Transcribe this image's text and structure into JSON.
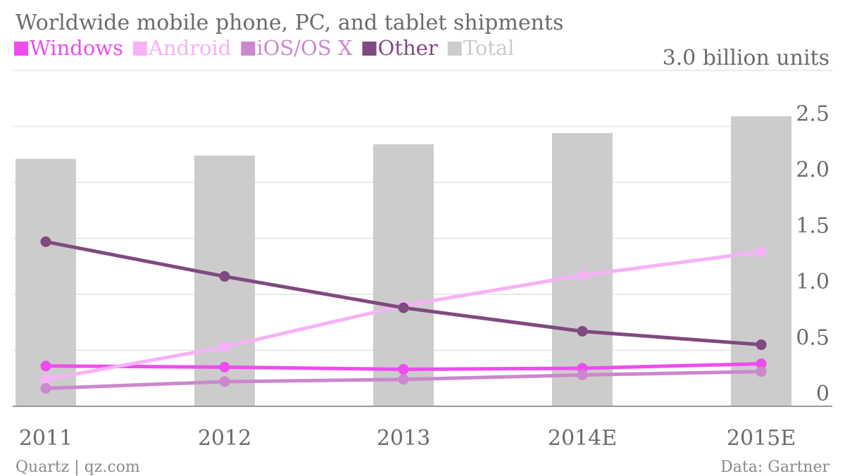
{
  "chart_data": {
    "type": "bar+line",
    "title": "Worldwide mobile phone, PC, and tablet shipments",
    "unit_label": "3.0 billion units",
    "categories": [
      "2011",
      "2012",
      "2013",
      "2014E",
      "2015E"
    ],
    "y_ticks": [
      {
        "value": 0.5,
        "label": "0.5"
      },
      {
        "value": 1.0,
        "label": "1.0"
      },
      {
        "value": 1.5,
        "label": "1.5"
      },
      {
        "value": 2.0,
        "label": "2.0"
      },
      {
        "value": 2.5,
        "label": "2.5"
      }
    ],
    "zero_label": "0",
    "ylim": [
      0,
      3.0
    ],
    "grid": true,
    "legend_position": "top-left",
    "bars": {
      "name": "Total",
      "color": "#cccccc",
      "values": [
        2.21,
        2.24,
        2.34,
        2.44,
        2.59
      ]
    },
    "series": [
      {
        "name": "Windows",
        "color": "#ee4cee",
        "values": [
          0.36,
          0.35,
          0.33,
          0.34,
          0.38
        ]
      },
      {
        "name": "Android",
        "color": "#f7b2f7",
        "values": [
          0.24,
          0.53,
          0.9,
          1.17,
          1.38
        ]
      },
      {
        "name": "iOS/OS X",
        "color": "#cc88cc",
        "values": [
          0.16,
          0.22,
          0.24,
          0.28,
          0.31
        ]
      },
      {
        "name": "Other",
        "color": "#7f4a7f",
        "values": [
          1.47,
          1.16,
          0.88,
          0.67,
          0.55
        ]
      }
    ],
    "source_left": "Quartz | qz.com",
    "source_right": "Data: Gartner"
  }
}
